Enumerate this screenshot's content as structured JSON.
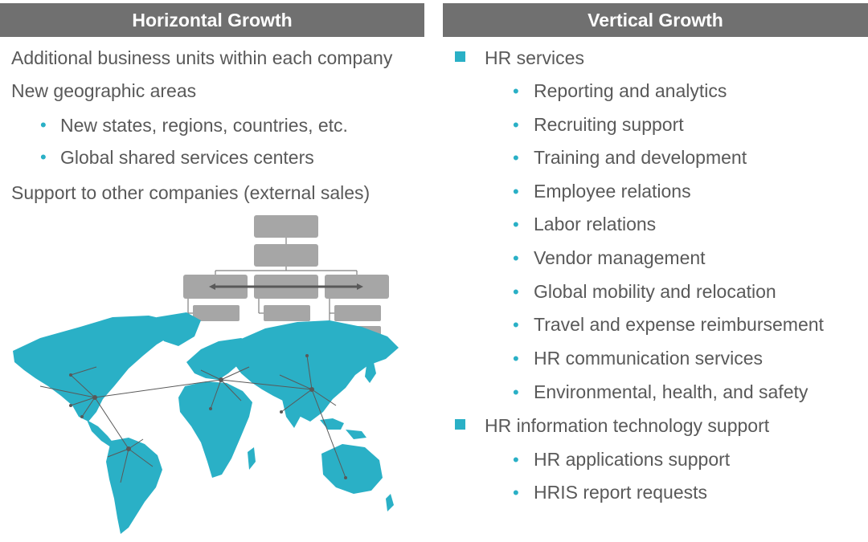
{
  "colors": {
    "accent": "#2ab0c6",
    "header_bg": "#707070",
    "box": "#a6a6a6",
    "text": "#595959"
  },
  "horizontal": {
    "title": "Horizontal Growth",
    "items": [
      {
        "text": "Additional business units within each company",
        "level": 1
      },
      {
        "text": "New geographic areas",
        "level": 1
      },
      {
        "text": "New states, regions, countries, etc.",
        "level": 2
      },
      {
        "text": "Global shared services centers",
        "level": 2
      },
      {
        "text": "Support to other companies (external sales)",
        "level": 1
      }
    ]
  },
  "vertical": {
    "title": "Vertical Growth",
    "groups": [
      {
        "label": "HR services",
        "items": [
          "Reporting and analytics",
          "Recruiting support",
          "Training and development",
          "Employee relations",
          "Labor relations",
          "Vendor management",
          "Global mobility and relocation",
          "Travel and expense reimbursement",
          "HR communication services",
          "Environmental, health, and safety"
        ]
      },
      {
        "label": "HR information technology support",
        "items": [
          "HR applications support",
          "HRIS report requests"
        ]
      }
    ]
  },
  "illustrations": {
    "org_chart": "org-chart-graphic",
    "map": "world-map-network-graphic"
  }
}
